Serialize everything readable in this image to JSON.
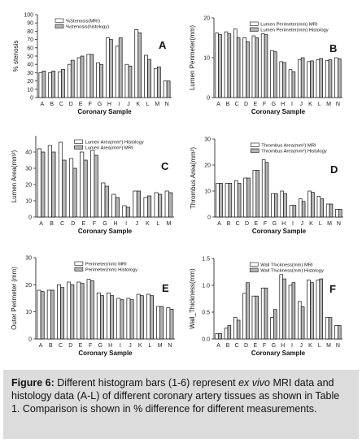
{
  "caption": {
    "label": "Figure 6:",
    "part1": " Different histogram bars (1-6) represent ",
    "italic": "ex vivo",
    "part2": " MRI data and histology data (A-L) of different coronary artery tissues as shown in Table 1. Comparison is shown in % difference for different measurements."
  },
  "colors": {
    "bar_mri": "#ffffff",
    "bar_histology": "#b5b5b5",
    "edge": "#111111"
  },
  "chart_data": [
    {
      "type": "bar",
      "panel_letter": "A",
      "categories": [
        "A",
        "B",
        "C",
        "D",
        "E",
        "F",
        "G",
        "H",
        "I",
        "J",
        "K",
        "L",
        "M",
        "N"
      ],
      "xlabel": "Coronary Sample",
      "ylabel": "% stenosis",
      "ylim": [
        0,
        100
      ],
      "yticks": [
        0,
        10,
        20,
        30,
        40,
        50,
        60,
        70,
        80,
        90,
        100
      ],
      "legend": "top-left",
      "grid": false,
      "series": [
        {
          "name": "%Stenosis(MRI)",
          "values": [
            30,
            30,
            31,
            40,
            48,
            52,
            42,
            72,
            62,
            40,
            82,
            51,
            35,
            20
          ]
        },
        {
          "name": "%stenosis(histology)",
          "values": [
            32,
            32,
            34,
            45,
            50,
            52,
            40,
            70,
            72,
            38,
            78,
            46,
            37,
            20
          ]
        }
      ]
    },
    {
      "type": "bar",
      "panel_letter": "B",
      "categories": [
        "A",
        "B",
        "C",
        "D",
        "E",
        "F",
        "G",
        "H",
        "I",
        "J",
        "K",
        "L",
        "M",
        "N"
      ],
      "xlabel": "Coronary Sample",
      "ylabel": "Lumen Perimeter(mm)",
      "ylim": [
        0,
        20
      ],
      "yticks": [
        0,
        10,
        20
      ],
      "legend": "top-center",
      "grid": false,
      "series": [
        {
          "name": "Lumen Perimeter(mm) MRI",
          "values": [
            16.2,
            16.5,
            17.2,
            15.0,
            15.5,
            16.0,
            11.8,
            9.0,
            7.0,
            9.5,
            9.0,
            9.5,
            9.3,
            10.0
          ]
        },
        {
          "name": "Lumen Perimeter(mm) Histology",
          "values": [
            15.8,
            16.0,
            15.0,
            14.0,
            15.0,
            15.8,
            11.5,
            8.8,
            6.5,
            10.0,
            9.2,
            9.8,
            9.5,
            9.7
          ]
        }
      ]
    },
    {
      "type": "bar",
      "panel_letter": "C",
      "categories": [
        "A",
        "B",
        "C",
        "D",
        "E",
        "F",
        "G",
        "H",
        "I",
        "J",
        "K",
        "L",
        "M"
      ],
      "xlabel": "Coronary Sample",
      "ylabel": "Lumen Area(mm²)",
      "ylim": [
        0,
        50
      ],
      "yticks": [
        0,
        10,
        20,
        30,
        40
      ],
      "legend": "top-center",
      "grid": false,
      "series": [
        {
          "name": "Lumen Area(mm²) Histology",
          "values": [
            42,
            44,
            46,
            36,
            40,
            41,
            21,
            14,
            7,
            16,
            12,
            15,
            16
          ]
        },
        {
          "name": "Lumen Area(mm²) MRI",
          "values": [
            40,
            40,
            35,
            30,
            35,
            38,
            19,
            12,
            6,
            16,
            13,
            14,
            15
          ]
        }
      ]
    },
    {
      "type": "bar",
      "panel_letter": "D",
      "categories": [
        "A",
        "B",
        "C",
        "D",
        "E",
        "F",
        "G",
        "H",
        "I",
        "J",
        "K",
        "L",
        "M",
        "N"
      ],
      "xlabel": "Coronary Sample",
      "ylabel": "Thrombus Area(mm²)",
      "ylim": [
        0,
        30
      ],
      "yticks": [
        0,
        10,
        20,
        30
      ],
      "legend": "top-center",
      "grid": false,
      "series": [
        {
          "name": "Thrombus Area(mm²) MRI",
          "values": [
            13,
            13,
            14,
            15,
            18,
            22,
            9,
            10,
            4.5,
            7,
            10,
            8,
            5,
            3
          ]
        },
        {
          "name": "Thrombus Area(mm²) Histology",
          "values": [
            13,
            13,
            13,
            15,
            18,
            21,
            9,
            9,
            4.5,
            6,
            9.5,
            7,
            5,
            3
          ]
        }
      ]
    },
    {
      "type": "bar",
      "panel_letter": "E",
      "categories": [
        "A",
        "B",
        "C",
        "D",
        "E",
        "F",
        "G",
        "H",
        "I",
        "J",
        "K",
        "L",
        "M",
        "N"
      ],
      "xlabel": "Coronary Sample",
      "ylabel": "Outer Perimeter (mm)",
      "ylim": [
        0,
        30
      ],
      "yticks": [
        0,
        10,
        20,
        30
      ],
      "legend": "top-center",
      "grid": false,
      "series": [
        {
          "name": "Perimeter(mm) MRI",
          "values": [
            18,
            18,
            20,
            21,
            21,
            22,
            17,
            17,
            15,
            15,
            16.5,
            16.5,
            12,
            11.5
          ]
        },
        {
          "name": "Perimeter(mm) Histology",
          "values": [
            17.5,
            18,
            19,
            20,
            20.5,
            21.5,
            16,
            16,
            14.5,
            14.5,
            16,
            16,
            12,
            11
          ]
        }
      ]
    },
    {
      "type": "bar",
      "panel_letter": "F",
      "categories": [
        "A",
        "B",
        "C",
        "D",
        "E",
        "F",
        "G",
        "H",
        "I",
        "J",
        "K",
        "L",
        "M",
        "N"
      ],
      "xlabel": "Coronary Sample",
      "ylabel": "Wall_Thickness(mm)",
      "ylim": [
        0,
        1.5
      ],
      "yticks": [
        0.0,
        0.5,
        1.0,
        1.5
      ],
      "legend": "top-center",
      "grid": false,
      "series": [
        {
          "name": "Wall Thickness(mm) MRI",
          "values": [
            0.1,
            0.2,
            0.4,
            0.85,
            0.8,
            0.95,
            0.4,
            1.2,
            1.0,
            0.7,
            1.1,
            1.1,
            0.4,
            0.25
          ]
        },
        {
          "name": "Wall Thickness(mm) Histology",
          "values": [
            0.1,
            0.25,
            0.35,
            1.05,
            0.8,
            0.95,
            0.55,
            1.12,
            1.05,
            0.6,
            1.05,
            1.12,
            0.4,
            0.25
          ]
        }
      ]
    }
  ]
}
